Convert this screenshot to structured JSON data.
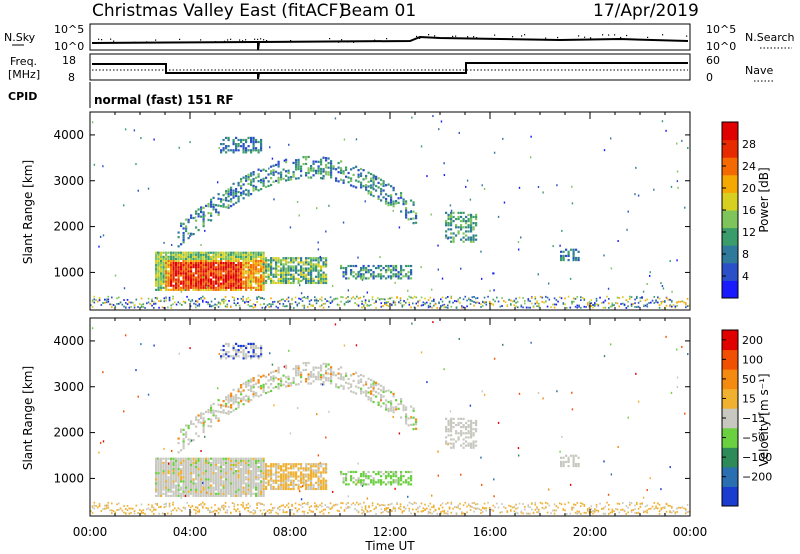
{
  "header": {
    "station": "Christmas Valley East (fitACF)",
    "beam": "Beam 01",
    "date": "17/Apr/2019"
  },
  "panels": {
    "nsky": {
      "label": "N.Sky",
      "ticks": [
        "10^5",
        "10^0"
      ],
      "right_label": "N.Search",
      "right_ticks": [
        "10^5",
        "10^0"
      ]
    },
    "freq": {
      "label_line1": "Freq.",
      "label_line2": "[MHz]",
      "ticks": [
        "18",
        "8"
      ],
      "right_label": "Nave",
      "right_ticks": [
        "60",
        "0"
      ]
    },
    "cpid": {
      "label": "CPID",
      "value": "normal (fast) 151 RF"
    }
  },
  "chart_data": [
    {
      "type": "heatmap",
      "name": "Power",
      "xlabel": "",
      "ylabel": "Slant Range [km]",
      "x_ticks": [
        "00:00",
        "04:00",
        "08:00",
        "12:00",
        "16:00",
        "20:00",
        "00:00"
      ],
      "y_ticks": [
        1000,
        2000,
        3000,
        4000
      ],
      "xlim_hours": [
        0,
        24
      ],
      "ylim_km": [
        180,
        4500
      ],
      "colorbar": {
        "label": "Power [dB]",
        "ticks": [
          4,
          8,
          12,
          16,
          20,
          24,
          28
        ],
        "range": [
          0,
          32
        ],
        "colors": [
          "#1a1aff",
          "#2a4fc8",
          "#2f7a9a",
          "#3a9c6a",
          "#7fc45a",
          "#d8d020",
          "#f5a800",
          "#f56a00",
          "#e82a00",
          "#e00000"
        ]
      }
    },
    {
      "type": "heatmap",
      "name": "Velocity",
      "xlabel": "Time UT",
      "ylabel": "Slant Range [km]",
      "x_ticks": [
        "00:00",
        "04:00",
        "08:00",
        "12:00",
        "16:00",
        "20:00",
        "00:00"
      ],
      "y_ticks": [
        1000,
        2000,
        3000,
        4000
      ],
      "xlim_hours": [
        0,
        24
      ],
      "ylim_km": [
        180,
        4500
      ],
      "colorbar": {
        "label": "Velocity [m s⁻¹]",
        "ticks": [
          "200",
          "100",
          "50",
          "15",
          "−15",
          "−50",
          "−100",
          "−200"
        ],
        "colors": [
          "#1a3ccf",
          "#2a6fb0",
          "#2f8a5a",
          "#6ad040",
          "#c8c8c0",
          "#f0b030",
          "#f58a10",
          "#f05000",
          "#e00000"
        ]
      }
    }
  ]
}
